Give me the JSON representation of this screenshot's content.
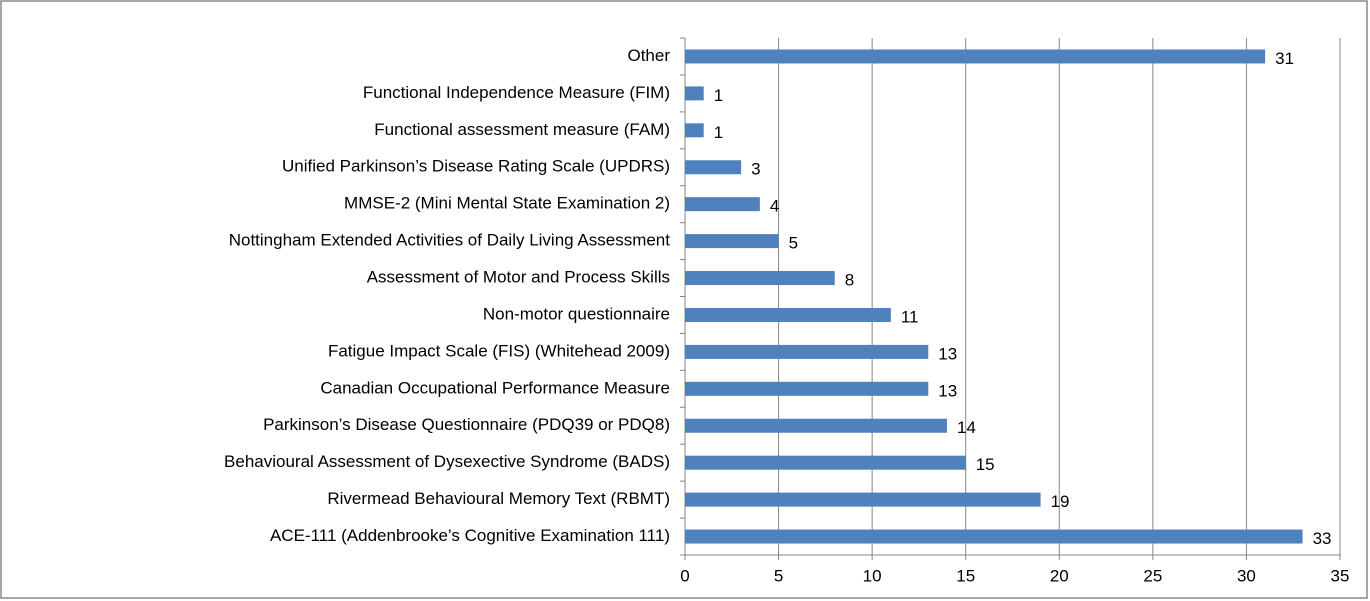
{
  "chart_data": {
    "type": "bar",
    "orientation": "horizontal",
    "categories": [
      "Other",
      "Functional Independence Measure (FIM)",
      "Functional assessment measure (FAM)",
      "Unified Parkinson’s Disease Rating Scale (UPDRS)",
      "MMSE-2 (Mini Mental State Examination 2)",
      "Nottingham Extended Activities of Daily Living Assessment",
      "Assessment of Motor and Process Skills",
      "Non-motor questionnaire",
      "Fatigue Impact Scale (FIS) (Whitehead 2009)",
      "Canadian Occupational Performance Measure",
      "Parkinson’s Disease Questionnaire (PDQ39 or PDQ8)",
      "Behavioural Assessment of Dysexective Syndrome (BADS)",
      "Rivermead Behavioural Memory Text (RBMT)",
      "ACE-111 (Addenbrooke’s Cognitive Examination 111)"
    ],
    "values": [
      31,
      1,
      1,
      3,
      4,
      5,
      8,
      11,
      13,
      13,
      14,
      15,
      19,
      33
    ],
    "color": "#4f81bd",
    "xlim": [
      0,
      35
    ],
    "xticks": [
      0,
      5,
      10,
      15,
      20,
      25,
      30,
      35
    ],
    "grid": true
  }
}
